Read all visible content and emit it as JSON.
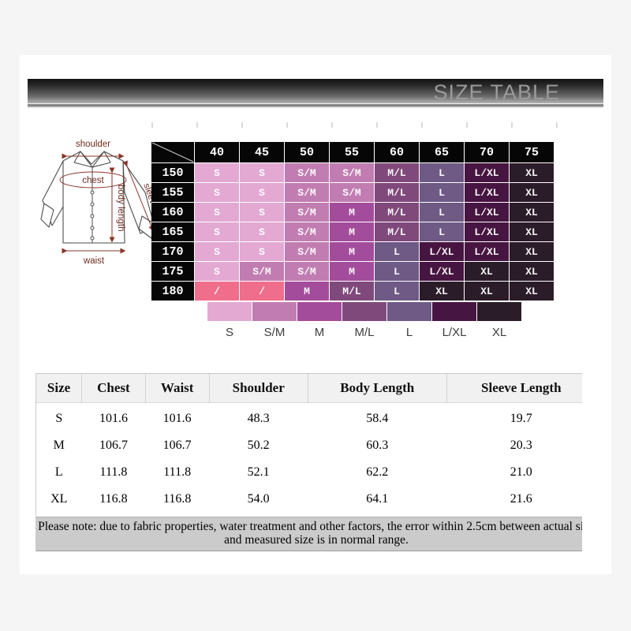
{
  "banner": {
    "title": "SIZE TABLE"
  },
  "diagram": {
    "shoulder": "shoulder",
    "chest": "chest",
    "body_length": "body length",
    "sleeve": "sleeve",
    "waist": "waist"
  },
  "chart_data": [
    {
      "type": "heatmap",
      "title": "SIZE TABLE",
      "x_ticks": [
        "40",
        "45",
        "50",
        "55",
        "60",
        "65",
        "70",
        "75"
      ],
      "y_ticks": [
        "150",
        "155",
        "160",
        "165",
        "170",
        "175",
        "180"
      ],
      "values": [
        [
          "S",
          "S",
          "S/M",
          "S/M",
          "M/L",
          "L",
          "L/XL",
          "XL"
        ],
        [
          "S",
          "S",
          "S/M",
          "S/M",
          "M/L",
          "L",
          "L/XL",
          "XL"
        ],
        [
          "S",
          "S",
          "S/M",
          "M",
          "M/L",
          "L",
          "L/XL",
          "XL"
        ],
        [
          "S",
          "S",
          "S/M",
          "M",
          "M/L",
          "L",
          "L/XL",
          "XL"
        ],
        [
          "S",
          "S",
          "S/M",
          "M",
          "L",
          "L/XL",
          "L/XL",
          "XL"
        ],
        [
          "S",
          "S/M",
          "S/M",
          "M",
          "L",
          "L/XL",
          "XL",
          "XL"
        ],
        [
          "/",
          "/",
          "M",
          "M/L",
          "L",
          "XL",
          "XL",
          "XL"
        ]
      ],
      "legend": [
        "S",
        "S/M",
        "M",
        "M/L",
        "L",
        "L/XL",
        "XL"
      ],
      "legend_position": "bottom",
      "colors": {
        "S": "#e3a9d3",
        "S/M": "#c17db1",
        "M": "#a34c9c",
        "M/L": "#80497b",
        "L": "#6e5a85",
        "L/XL": "#471541",
        "XL": "#2b1c29",
        "/": "#ee6e8c",
        "header_bg": "#060606",
        "grid_line": "#ffffff"
      }
    },
    {
      "type": "table",
      "headers": [
        "Size",
        "Chest",
        "Waist",
        "Shoulder",
        "Body Length",
        "Sleeve Length"
      ],
      "rows": [
        [
          "S",
          "101.6",
          "101.6",
          "48.3",
          "58.4",
          "19.7"
        ],
        [
          "M",
          "106.7",
          "106.7",
          "50.2",
          "60.3",
          "20.3"
        ],
        [
          "L",
          "111.8",
          "111.8",
          "52.1",
          "62.2",
          "21.0"
        ],
        [
          "XL",
          "116.8",
          "116.8",
          "54.0",
          "64.1",
          "21.6"
        ]
      ]
    }
  ],
  "note": {
    "line1": "Please note: due to fabric properties, water treatment and other factors, the error within 2.5cm between actual size",
    "line2": "and measured size is in normal range."
  }
}
